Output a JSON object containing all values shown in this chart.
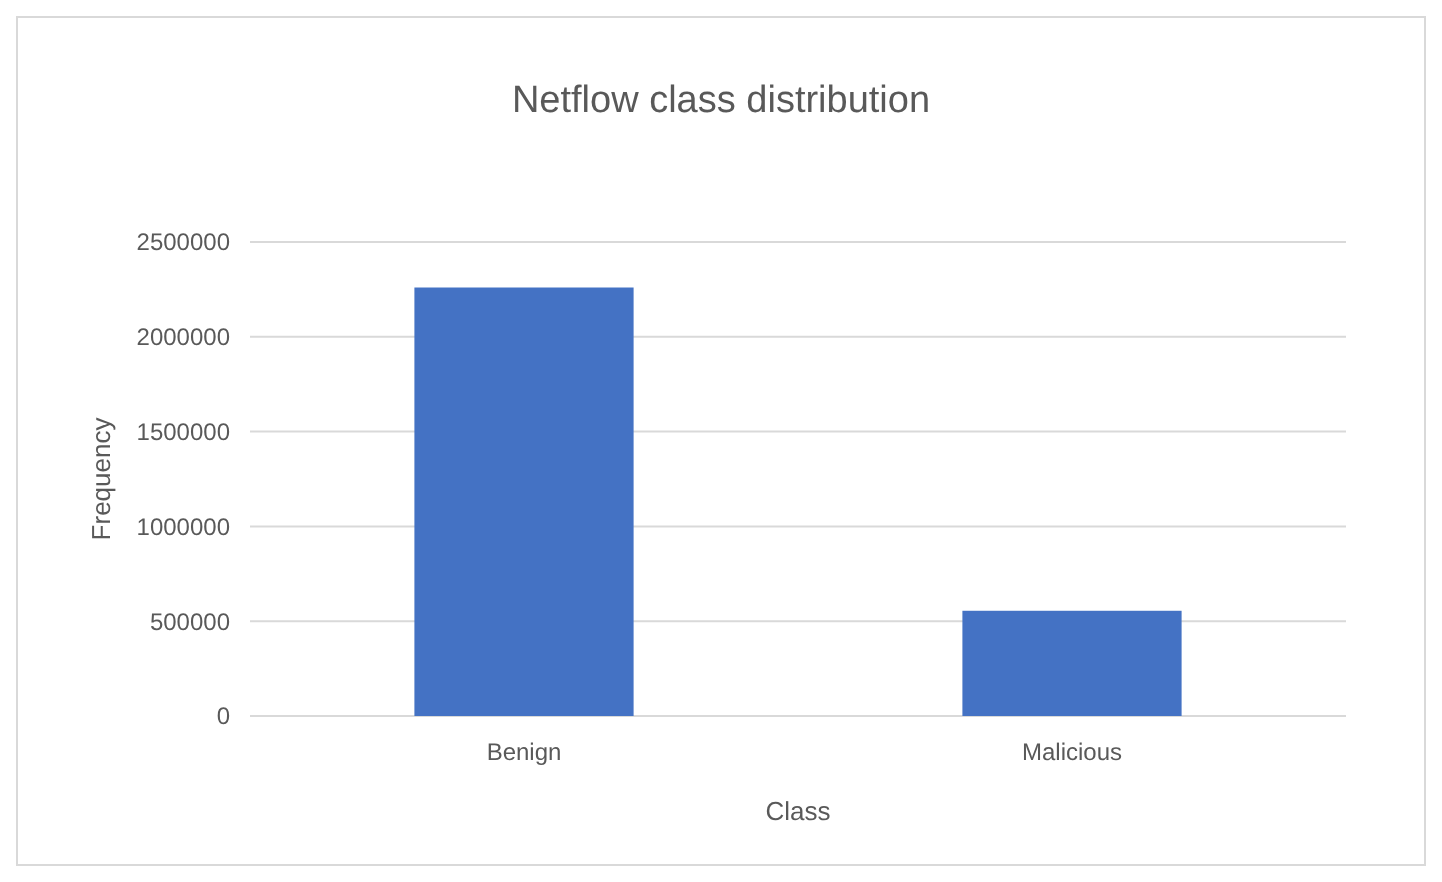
{
  "chart_data": {
    "type": "bar",
    "title": "Netflow class distribution",
    "xlabel": "Class",
    "ylabel": "Frequency",
    "categories": [
      "Benign",
      "Malicious"
    ],
    "values": [
      2260000,
      555000
    ],
    "color": "#4472c4",
    "ylim": [
      0,
      2500000
    ],
    "yticks": [
      0,
      500000,
      1000000,
      1500000,
      2000000,
      2500000
    ],
    "grid": "y"
  }
}
